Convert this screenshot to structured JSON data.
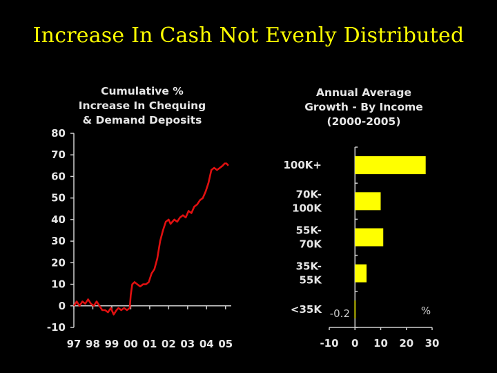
{
  "slide_title": "Increase In Cash Not Evenly Distributed",
  "chart_data": [
    {
      "type": "line",
      "title": "Cumulative % Increase In Chequing & Demand Deposits",
      "title_lines": [
        "Cumulative %",
        "Increase In Chequing",
        "& Demand Deposits"
      ],
      "xlabel": "",
      "ylabel": "",
      "x_tick_labels": [
        "97",
        "98",
        "99",
        "00",
        "01",
        "02",
        "03",
        "04",
        "05"
      ],
      "y_ticks": [
        80,
        70,
        60,
        50,
        40,
        30,
        20,
        10,
        0,
        -10
      ],
      "ylim": [
        -10,
        80
      ],
      "xlim": [
        1997,
        2005.3
      ],
      "line_color": "#e01010",
      "grid": false,
      "series": [
        {
          "x": [
            1997.0,
            1997.15,
            1997.3,
            1997.45,
            1997.6,
            1997.75,
            1997.9,
            1998.05,
            1998.2,
            1998.35,
            1998.5,
            1998.65,
            1998.8,
            1998.95,
            1999.1,
            1999.25,
            1999.35,
            1999.5,
            1999.65,
            1999.8,
            1999.95,
            2000.0,
            2000.08,
            2000.2,
            2000.35,
            2000.5,
            2000.65,
            2000.8,
            2000.95,
            2001.1,
            2001.25,
            2001.4,
            2001.55,
            2001.7,
            2001.85,
            2002.0,
            2002.1,
            2002.2,
            2002.3,
            2002.45,
            2002.6,
            2002.75,
            2002.9,
            2003.05,
            2003.2,
            2003.35,
            2003.5,
            2003.65,
            2003.8,
            2003.95,
            2004.1,
            2004.25,
            2004.4,
            2004.55,
            2004.7,
            2004.85,
            2004.95,
            2005.05,
            2005.15
          ],
          "y": [
            0,
            2,
            0,
            2,
            1,
            3,
            1,
            0,
            2,
            0,
            -2,
            -2,
            -3,
            -1,
            -4,
            -2,
            -1,
            -2,
            -1,
            -2,
            -1,
            5,
            10,
            11,
            10,
            9,
            10,
            10,
            11,
            15,
            17,
            22,
            30,
            35,
            39,
            40,
            38,
            39,
            40,
            39,
            41,
            42,
            41,
            44,
            43,
            46,
            47,
            49,
            50,
            53,
            57,
            63,
            64,
            63,
            64,
            65,
            66,
            66,
            65
          ]
        }
      ]
    },
    {
      "type": "bar",
      "orientation": "horizontal",
      "title": "Annual Average Growth - By Income (2000-2005)",
      "title_lines": [
        "Annual Average",
        "Growth - By Income",
        "(2000-2005)"
      ],
      "categories": [
        "100K+",
        "70K-100K",
        "55K-70K",
        "35K-55K",
        "<35K"
      ],
      "category_lines": [
        [
          "100K+"
        ],
        [
          "70K-",
          "100K"
        ],
        [
          "55K-",
          "70K"
        ],
        [
          "35K-",
          "55K"
        ],
        [
          "<35K"
        ]
      ],
      "values": [
        27.5,
        10,
        11,
        4.5,
        -0.2
      ],
      "value_annotation": "-0.2",
      "unit_label": "%",
      "x_ticks": [
        -10,
        0,
        10,
        20,
        30
      ],
      "x_tick_labels": [
        "-10",
        "0",
        "10",
        "20",
        "30"
      ],
      "xlim": [
        -10,
        30
      ],
      "bar_color": "#ffff00",
      "grid": false
    }
  ]
}
